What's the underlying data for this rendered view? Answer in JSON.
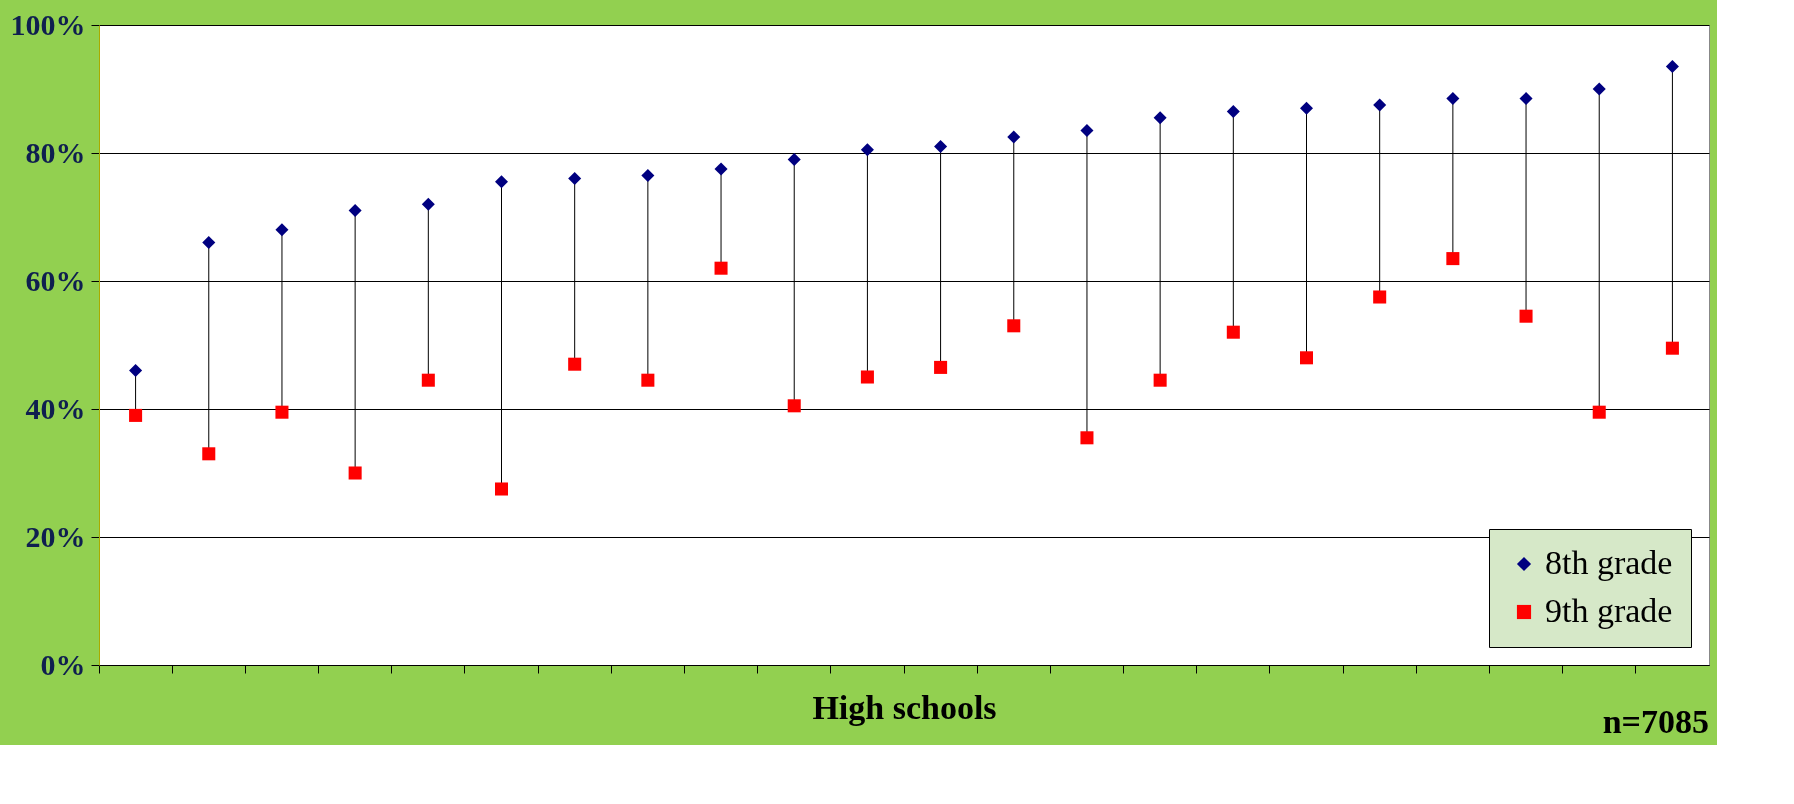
{
  "chart_data": {
    "type": "scatter",
    "xlabel": "High schools",
    "annotations": [
      "n=7085"
    ],
    "categories": [
      null,
      null,
      null,
      null,
      null,
      null,
      null,
      null,
      null,
      null,
      null,
      null,
      null,
      null,
      null,
      null,
      null,
      null,
      null,
      null,
      null,
      null
    ],
    "series": [
      {
        "name": "8th grade",
        "color": "#000080",
        "marker": "diamond",
        "values": [
          46,
          66,
          68,
          71,
          72,
          75.5,
          76,
          76.5,
          77.5,
          79,
          80.5,
          81,
          82.5,
          83.5,
          85.5,
          86.5,
          87,
          87.5,
          88.5,
          88.5,
          90,
          93.5
        ]
      },
      {
        "name": "9th grade",
        "color": "#ff0000",
        "marker": "square",
        "values": [
          39,
          33,
          39.5,
          30,
          44.5,
          27.5,
          47,
          44.5,
          62,
          40.5,
          45,
          46.5,
          53,
          35.5,
          44.5,
          52,
          48,
          57.5,
          63.5,
          54.5,
          39.5,
          49.5
        ]
      }
    ],
    "ylim": [
      0,
      100
    ],
    "yticks": [
      {
        "value": 0,
        "label": "0%"
      },
      {
        "value": 20,
        "label": "20%"
      },
      {
        "value": 40,
        "label": "40%"
      },
      {
        "value": 60,
        "label": "60%"
      },
      {
        "value": 80,
        "label": "80%"
      },
      {
        "value": 100,
        "label": "100%"
      }
    ],
    "grid": "y",
    "legend": "bottom right",
    "tick_labels": "y"
  }
}
